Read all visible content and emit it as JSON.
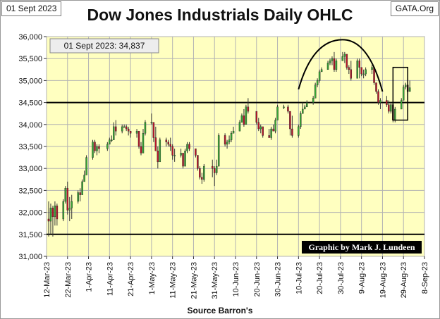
{
  "header": {
    "date_label": "01 Sept 2023",
    "title": "Dow Jones Industrials Daily OHLC",
    "source_tag": "GATA.Org"
  },
  "chart_data": {
    "type": "candlestick",
    "title": "Dow Jones Industrials Daily OHLC",
    "xlabel": "Source Barron's",
    "ylabel": "",
    "ylim": [
      31000,
      36000
    ],
    "yticks": [
      31000,
      31500,
      32000,
      32500,
      33000,
      33500,
      34000,
      34500,
      35000,
      35500,
      36000
    ],
    "ytick_labels": [
      "31,000",
      "31,500",
      "32,000",
      "32,500",
      "33,000",
      "33,500",
      "34,000",
      "34,500",
      "35,000",
      "35,500",
      "36,000"
    ],
    "xlim": [
      "2023-03-12",
      "2023-09-08"
    ],
    "xticks": [
      "2023-03-12",
      "2023-03-22",
      "2023-04-01",
      "2023-04-11",
      "2023-04-21",
      "2023-05-01",
      "2023-05-11",
      "2023-05-21",
      "2023-05-31",
      "2023-06-10",
      "2023-06-20",
      "2023-06-30",
      "2023-07-10",
      "2023-07-20",
      "2023-07-30",
      "2023-08-09",
      "2023-08-19",
      "2023-08-29",
      "2023-09-08"
    ],
    "xtick_labels": [
      "12-Mar-23",
      "22-Mar-23",
      "1-Apr-23",
      "11-Apr-23",
      "21-Apr-23",
      "1-May-23",
      "11-May-23",
      "21-May-23",
      "31-May-23",
      "10-Jun-23",
      "20-Jun-23",
      "30-Jun-23",
      "10-Jul-23",
      "20-Jul-23",
      "30-Jul-23",
      "9-Aug-23",
      "19-Aug-23",
      "29-Aug-23",
      "8-Sep-23"
    ],
    "grid": true,
    "annotations": {
      "value_label": "01 Sept 2023: 34,837",
      "credit": "Graphic by Mark J. Lundeen",
      "reference_lines": [
        34500,
        31500
      ],
      "arc": {
        "start": [
          "2023-07-10",
          34800
        ],
        "peak": [
          "2023-07-31",
          35930
        ],
        "end": [
          "2023-08-19",
          34750
        ]
      },
      "box": {
        "x": [
          "2023-08-24",
          "2023-08-31"
        ],
        "y": [
          34100,
          35300
        ]
      }
    },
    "colors": {
      "up": "#37a637",
      "down": "#b8142b",
      "plot_bg": "#ffffc0",
      "grid": "#b3b3b3"
    },
    "ohlc": [
      {
        "date": "2023-03-13",
        "open": 31850,
        "high": 32250,
        "low": 31450,
        "close": 31800
      },
      {
        "date": "2023-03-14",
        "open": 31800,
        "high": 32200,
        "low": 31500,
        "close": 32100
      },
      {
        "date": "2023-03-15",
        "open": 32100,
        "high": 32150,
        "low": 31450,
        "close": 31900
      },
      {
        "date": "2023-03-16",
        "open": 31900,
        "high": 32250,
        "low": 31700,
        "close": 32150
      },
      {
        "date": "2023-03-17",
        "open": 32150,
        "high": 32200,
        "low": 31700,
        "close": 31850
      },
      {
        "date": "2023-03-20",
        "open": 31850,
        "high": 32300,
        "low": 31800,
        "close": 32250
      },
      {
        "date": "2023-03-21",
        "open": 32250,
        "high": 32600,
        "low": 32200,
        "close": 32550
      },
      {
        "date": "2023-03-22",
        "open": 32550,
        "high": 32700,
        "low": 31950,
        "close": 32050
      },
      {
        "date": "2023-03-23",
        "open": 32050,
        "high": 32350,
        "low": 31800,
        "close": 32100
      },
      {
        "date": "2023-03-24",
        "open": 32100,
        "high": 32400,
        "low": 31850,
        "close": 32250
      },
      {
        "date": "2023-03-27",
        "open": 32250,
        "high": 32500,
        "low": 32200,
        "close": 32450
      },
      {
        "date": "2023-03-28",
        "open": 32450,
        "high": 32550,
        "low": 32250,
        "close": 32400
      },
      {
        "date": "2023-03-29",
        "open": 32400,
        "high": 32750,
        "low": 32400,
        "close": 32700
      },
      {
        "date": "2023-03-30",
        "open": 32700,
        "high": 32950,
        "low": 32700,
        "close": 32850
      },
      {
        "date": "2023-03-31",
        "open": 32850,
        "high": 33300,
        "low": 32850,
        "close": 33250
      },
      {
        "date": "2023-04-03",
        "open": 33250,
        "high": 33650,
        "low": 33200,
        "close": 33600
      },
      {
        "date": "2023-04-04",
        "open": 33600,
        "high": 33650,
        "low": 33350,
        "close": 33400
      },
      {
        "date": "2023-04-05",
        "open": 33400,
        "high": 33550,
        "low": 33300,
        "close": 33500
      },
      {
        "date": "2023-04-06",
        "open": 33500,
        "high": 33550,
        "low": 33350,
        "close": 33450
      },
      {
        "date": "2023-04-10",
        "open": 33450,
        "high": 33600,
        "low": 33400,
        "close": 33550
      },
      {
        "date": "2023-04-11",
        "open": 33550,
        "high": 33700,
        "low": 33550,
        "close": 33650
      },
      {
        "date": "2023-04-12",
        "open": 33650,
        "high": 33750,
        "low": 33600,
        "close": 33650
      },
      {
        "date": "2023-04-13",
        "open": 33650,
        "high": 34050,
        "low": 33650,
        "close": 33950
      },
      {
        "date": "2023-04-14",
        "open": 33950,
        "high": 34100,
        "low": 33750,
        "close": 33850
      },
      {
        "date": "2023-04-17",
        "open": 33850,
        "high": 34000,
        "low": 33800,
        "close": 33950
      },
      {
        "date": "2023-04-18",
        "open": 33950,
        "high": 34000,
        "low": 33950,
        "close": 33950
      },
      {
        "date": "2023-04-19",
        "open": 33950,
        "high": 34000,
        "low": 33850,
        "close": 33900
      },
      {
        "date": "2023-04-20",
        "open": 33900,
        "high": 33950,
        "low": 33750,
        "close": 33850
      },
      {
        "date": "2023-04-21",
        "open": 33850,
        "high": 33850,
        "low": 33700,
        "close": 33800
      },
      {
        "date": "2023-04-24",
        "open": 33800,
        "high": 33900,
        "low": 33700,
        "close": 33850
      },
      {
        "date": "2023-04-25",
        "open": 33850,
        "high": 33850,
        "low": 33450,
        "close": 33500
      },
      {
        "date": "2023-04-26",
        "open": 33500,
        "high": 33600,
        "low": 33300,
        "close": 33350
      },
      {
        "date": "2023-04-27",
        "open": 33350,
        "high": 33900,
        "low": 33350,
        "close": 33800
      },
      {
        "date": "2023-04-28",
        "open": 33800,
        "high": 34100,
        "low": 33750,
        "close": 34050
      },
      {
        "date": "2023-05-01",
        "open": 34050,
        "high": 34250,
        "low": 34000,
        "close": 34050
      },
      {
        "date": "2023-05-02",
        "open": 34050,
        "high": 34050,
        "low": 33600,
        "close": 33700
      },
      {
        "date": "2023-05-03",
        "open": 33700,
        "high": 33950,
        "low": 33400,
        "close": 33400
      },
      {
        "date": "2023-05-04",
        "open": 33400,
        "high": 33500,
        "low": 33000,
        "close": 33150
      },
      {
        "date": "2023-05-05",
        "open": 33150,
        "high": 33700,
        "low": 33150,
        "close": 33650
      },
      {
        "date": "2023-05-08",
        "open": 33650,
        "high": 33700,
        "low": 33500,
        "close": 33600
      },
      {
        "date": "2023-05-09",
        "open": 33600,
        "high": 33650,
        "low": 33500,
        "close": 33550
      },
      {
        "date": "2023-05-10",
        "open": 33550,
        "high": 33700,
        "low": 33400,
        "close": 33500
      },
      {
        "date": "2023-05-11",
        "open": 33500,
        "high": 33550,
        "low": 33200,
        "close": 33300
      },
      {
        "date": "2023-05-12",
        "open": 33300,
        "high": 33450,
        "low": 33150,
        "close": 33300
      },
      {
        "date": "2023-05-15",
        "open": 33300,
        "high": 33450,
        "low": 33250,
        "close": 33350
      },
      {
        "date": "2023-05-16",
        "open": 33350,
        "high": 33350,
        "low": 33000,
        "close": 33050
      },
      {
        "date": "2023-05-17",
        "open": 33050,
        "high": 33450,
        "low": 33050,
        "close": 33400
      },
      {
        "date": "2023-05-18",
        "open": 33400,
        "high": 33600,
        "low": 33350,
        "close": 33550
      },
      {
        "date": "2023-05-19",
        "open": 33550,
        "high": 33600,
        "low": 33400,
        "close": 33450
      },
      {
        "date": "2023-05-22",
        "open": 33450,
        "high": 33450,
        "low": 33250,
        "close": 33300
      },
      {
        "date": "2023-05-23",
        "open": 33300,
        "high": 33300,
        "low": 32950,
        "close": 33000
      },
      {
        "date": "2023-05-24",
        "open": 33000,
        "high": 33050,
        "low": 32750,
        "close": 32800
      },
      {
        "date": "2023-05-25",
        "open": 32800,
        "high": 32900,
        "low": 32650,
        "close": 32750
      },
      {
        "date": "2023-05-26",
        "open": 32750,
        "high": 33100,
        "low": 32700,
        "close": 33050
      },
      {
        "date": "2023-05-30",
        "open": 33050,
        "high": 33200,
        "low": 32800,
        "close": 33000
      },
      {
        "date": "2023-05-31",
        "open": 33000,
        "high": 33050,
        "low": 32600,
        "close": 32900
      },
      {
        "date": "2023-06-01",
        "open": 32900,
        "high": 33200,
        "low": 32850,
        "close": 33050
      },
      {
        "date": "2023-06-02",
        "open": 33050,
        "high": 33800,
        "low": 33050,
        "close": 33750
      },
      {
        "date": "2023-06-05",
        "open": 33750,
        "high": 33800,
        "low": 33500,
        "close": 33550
      },
      {
        "date": "2023-06-06",
        "open": 33550,
        "high": 33650,
        "low": 33450,
        "close": 33600
      },
      {
        "date": "2023-06-07",
        "open": 33600,
        "high": 33750,
        "low": 33550,
        "close": 33650
      },
      {
        "date": "2023-06-08",
        "open": 33650,
        "high": 33850,
        "low": 33600,
        "close": 33800
      },
      {
        "date": "2023-06-09",
        "open": 33800,
        "high": 33950,
        "low": 33800,
        "close": 33850
      },
      {
        "date": "2023-06-12",
        "open": 33850,
        "high": 34100,
        "low": 33850,
        "close": 34050
      },
      {
        "date": "2023-06-13",
        "open": 34050,
        "high": 34250,
        "low": 34050,
        "close": 34200
      },
      {
        "date": "2023-06-14",
        "open": 34200,
        "high": 34350,
        "low": 33950,
        "close": 34000
      },
      {
        "date": "2023-06-15",
        "open": 34000,
        "high": 34450,
        "low": 34000,
        "close": 34400
      },
      {
        "date": "2023-06-16",
        "open": 34400,
        "high": 34600,
        "low": 34250,
        "close": 34300
      },
      {
        "date": "2023-06-20",
        "open": 34300,
        "high": 34300,
        "low": 34000,
        "close": 34050
      },
      {
        "date": "2023-06-21",
        "open": 34050,
        "high": 34150,
        "low": 33850,
        "close": 33900
      },
      {
        "date": "2023-06-22",
        "open": 33900,
        "high": 34000,
        "low": 33800,
        "close": 33950
      },
      {
        "date": "2023-06-23",
        "open": 33950,
        "high": 33950,
        "low": 33700,
        "close": 33750
      },
      {
        "date": "2023-06-26",
        "open": 33750,
        "high": 33900,
        "low": 33700,
        "close": 33700
      },
      {
        "date": "2023-06-27",
        "open": 33700,
        "high": 33950,
        "low": 33650,
        "close": 33900
      },
      {
        "date": "2023-06-28",
        "open": 33900,
        "high": 34000,
        "low": 33850,
        "close": 33850
      },
      {
        "date": "2023-06-29",
        "open": 33850,
        "high": 34150,
        "low": 33800,
        "close": 34100
      },
      {
        "date": "2023-06-30",
        "open": 34100,
        "high": 34450,
        "low": 34100,
        "close": 34400
      },
      {
        "date": "2023-07-03",
        "open": 34400,
        "high": 34450,
        "low": 34350,
        "close": 34400
      },
      {
        "date": "2023-07-05",
        "open": 34400,
        "high": 34450,
        "low": 34250,
        "close": 34300
      },
      {
        "date": "2023-07-06",
        "open": 34300,
        "high": 34300,
        "low": 33750,
        "close": 33900
      },
      {
        "date": "2023-07-07",
        "open": 33900,
        "high": 34200,
        "low": 33700,
        "close": 33750
      },
      {
        "date": "2023-07-10",
        "open": 33750,
        "high": 34000,
        "low": 33700,
        "close": 33950
      },
      {
        "date": "2023-07-11",
        "open": 33950,
        "high": 34300,
        "low": 33900,
        "close": 34250
      },
      {
        "date": "2023-07-12",
        "open": 34250,
        "high": 34500,
        "low": 34250,
        "close": 34350
      },
      {
        "date": "2023-07-13",
        "open": 34350,
        "high": 34450,
        "low": 34350,
        "close": 34400
      },
      {
        "date": "2023-07-14",
        "open": 34400,
        "high": 34550,
        "low": 34400,
        "close": 34500
      },
      {
        "date": "2023-07-17",
        "open": 34500,
        "high": 34650,
        "low": 34450,
        "close": 34600
      },
      {
        "date": "2023-07-18",
        "open": 34600,
        "high": 34950,
        "low": 34600,
        "close": 34900
      },
      {
        "date": "2023-07-19",
        "open": 34900,
        "high": 35050,
        "low": 34850,
        "close": 35000
      },
      {
        "date": "2023-07-20",
        "open": 35000,
        "high": 35250,
        "low": 34950,
        "close": 35200
      },
      {
        "date": "2023-07-21",
        "open": 35200,
        "high": 35300,
        "low": 35200,
        "close": 35250
      },
      {
        "date": "2023-07-24",
        "open": 35250,
        "high": 35450,
        "low": 35250,
        "close": 35400
      },
      {
        "date": "2023-07-25",
        "open": 35400,
        "high": 35500,
        "low": 35350,
        "close": 35450
      },
      {
        "date": "2023-07-26",
        "open": 35450,
        "high": 35550,
        "low": 35350,
        "close": 35500
      },
      {
        "date": "2023-07-27",
        "open": 35500,
        "high": 35650,
        "low": 35200,
        "close": 35250
      },
      {
        "date": "2023-07-28",
        "open": 35250,
        "high": 35500,
        "low": 35200,
        "close": 35450
      },
      {
        "date": "2023-07-31",
        "open": 35450,
        "high": 35650,
        "low": 35450,
        "close": 35550
      },
      {
        "date": "2023-08-01",
        "open": 35550,
        "high": 35650,
        "low": 35400,
        "close": 35600
      },
      {
        "date": "2023-08-02",
        "open": 35600,
        "high": 35600,
        "low": 35250,
        "close": 35300
      },
      {
        "date": "2023-08-03",
        "open": 35300,
        "high": 35350,
        "low": 35150,
        "close": 35250
      },
      {
        "date": "2023-08-04",
        "open": 35250,
        "high": 35450,
        "low": 35000,
        "close": 35050
      },
      {
        "date": "2023-08-07",
        "open": 35050,
        "high": 35500,
        "low": 35050,
        "close": 35450
      },
      {
        "date": "2023-08-08",
        "open": 35450,
        "high": 35500,
        "low": 35050,
        "close": 35300
      },
      {
        "date": "2023-08-09",
        "open": 35300,
        "high": 35300,
        "low": 35100,
        "close": 35150
      },
      {
        "date": "2023-08-10",
        "open": 35150,
        "high": 35250,
        "low": 35050,
        "close": 35150
      },
      {
        "date": "2023-08-11",
        "open": 35150,
        "high": 35300,
        "low": 35100,
        "close": 35250
      },
      {
        "date": "2023-08-14",
        "open": 35250,
        "high": 35350,
        "low": 35150,
        "close": 35300
      },
      {
        "date": "2023-08-15",
        "open": 35300,
        "high": 35300,
        "low": 34900,
        "close": 34950
      },
      {
        "date": "2023-08-16",
        "open": 34950,
        "high": 34950,
        "low": 34700,
        "close": 34750
      },
      {
        "date": "2023-08-17",
        "open": 34750,
        "high": 34800,
        "low": 34450,
        "close": 34500
      },
      {
        "date": "2023-08-18",
        "open": 34500,
        "high": 34600,
        "low": 34350,
        "close": 34550
      },
      {
        "date": "2023-08-21",
        "open": 34550,
        "high": 34650,
        "low": 34400,
        "close": 34450
      },
      {
        "date": "2023-08-22",
        "open": 34450,
        "high": 34550,
        "low": 34250,
        "close": 34300
      },
      {
        "date": "2023-08-23",
        "open": 34300,
        "high": 34500,
        "low": 34250,
        "close": 34450
      },
      {
        "date": "2023-08-24",
        "open": 34450,
        "high": 34450,
        "low": 34050,
        "close": 34100
      },
      {
        "date": "2023-08-25",
        "open": 34100,
        "high": 34400,
        "low": 34050,
        "close": 34350
      },
      {
        "date": "2023-08-28",
        "open": 34350,
        "high": 34600,
        "low": 34350,
        "close": 34550
      },
      {
        "date": "2023-08-29",
        "open": 34550,
        "high": 34900,
        "low": 34550,
        "close": 34850
      },
      {
        "date": "2023-08-30",
        "open": 34850,
        "high": 34950,
        "low": 34800,
        "close": 34900
      },
      {
        "date": "2023-08-31",
        "open": 34900,
        "high": 35050,
        "low": 34700,
        "close": 34750
      },
      {
        "date": "2023-09-01",
        "open": 34750,
        "high": 35000,
        "low": 34750,
        "close": 34837
      }
    ]
  }
}
